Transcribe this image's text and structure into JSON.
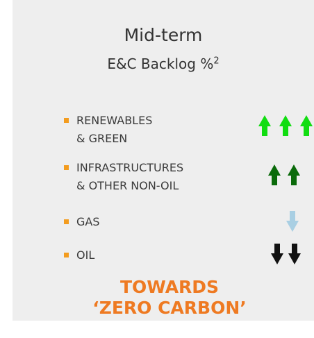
{
  "heading": {
    "title": "Mid-term",
    "subtitle": "E&C Backlog %",
    "footnote": "2"
  },
  "items": [
    {
      "lines": [
        "RENEWABLES",
        "& GREEN"
      ]
    },
    {
      "lines": [
        "INFRASTRUCTURES",
        "& OTHER NON-OIL"
      ]
    },
    {
      "lines": [
        "GAS"
      ]
    },
    {
      "lines": [
        "OIL"
      ]
    }
  ],
  "footer": {
    "lines": [
      "TOWARDS",
      "‘ZERO CARBON’"
    ]
  }
}
